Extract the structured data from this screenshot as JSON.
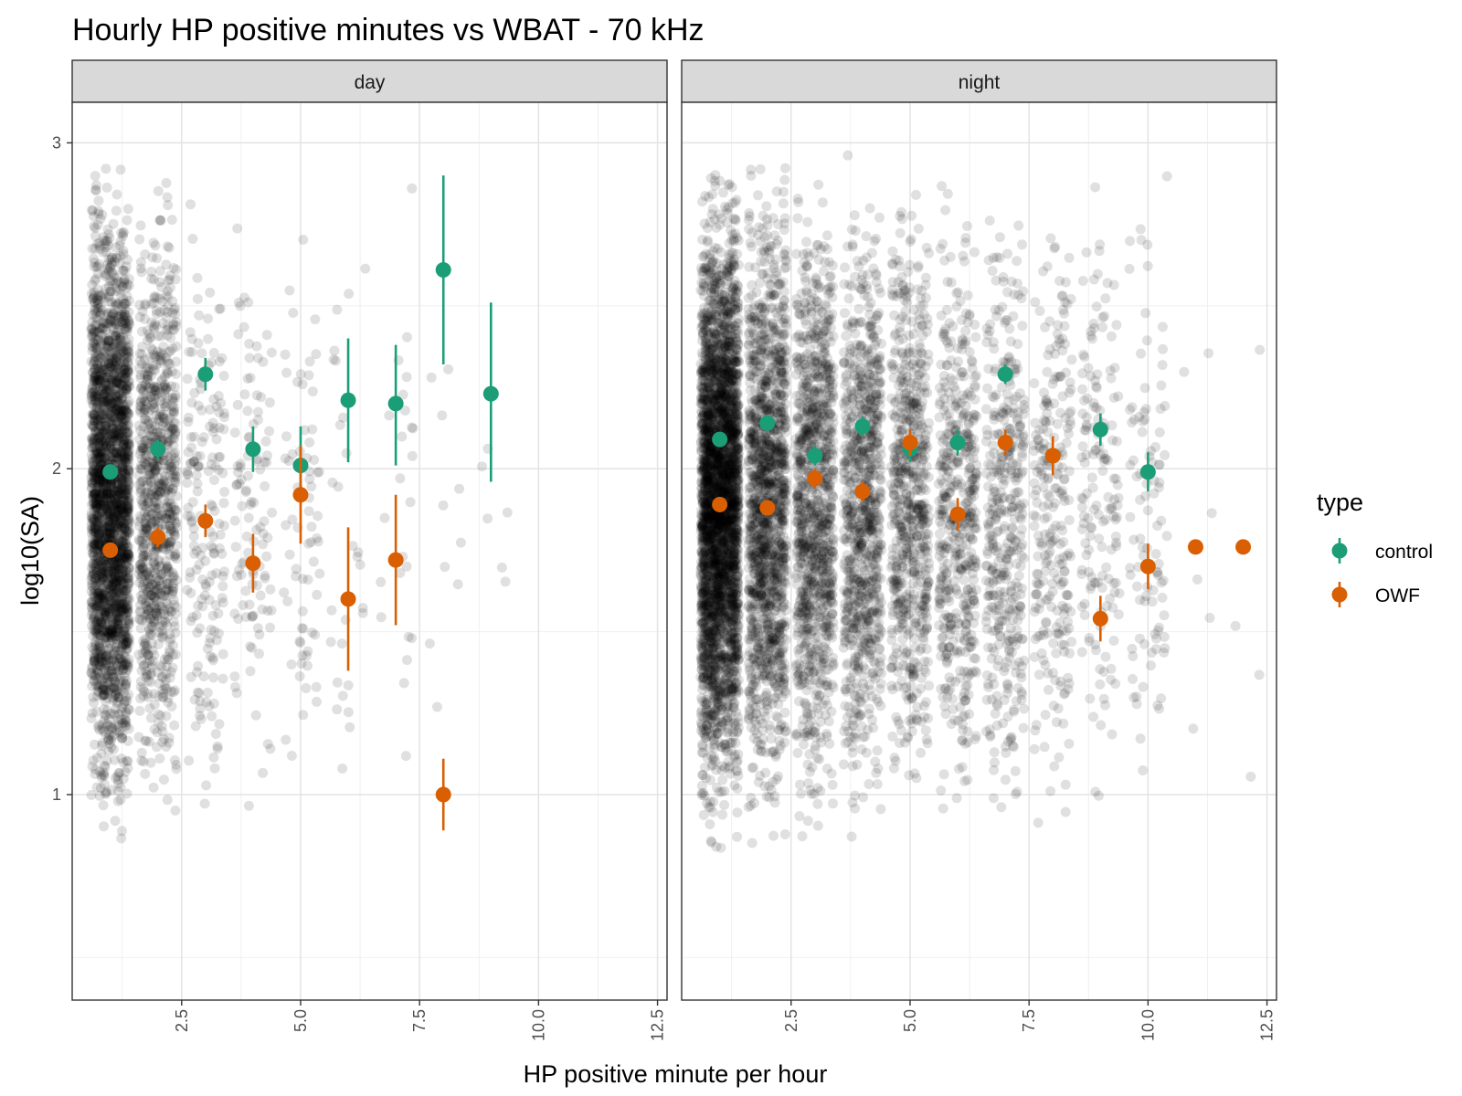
{
  "chart_data": {
    "type": "scatter",
    "title": "Hourly HP positive minutes vs WBAT - 70 kHz",
    "xlabel": "HP positive minute per hour",
    "ylabel": "log10(SA)",
    "xlim": [
      0.2,
      12.7
    ],
    "ylim": [
      0.35,
      3.0
    ],
    "x_ticks": [
      2.5,
      5.0,
      7.5,
      10.0,
      12.5
    ],
    "x_tick_labels": [
      "2.5",
      "5.0",
      "7.5",
      "10.0",
      "12.5"
    ],
    "y_ticks": [
      1,
      2,
      3
    ],
    "y_tick_labels": [
      "1",
      "2",
      "3"
    ],
    "grid": true,
    "legend": {
      "title": "type",
      "position": "right",
      "entries": [
        {
          "label": "control",
          "color": "#1b9e77"
        },
        {
          "label": "OWF",
          "color": "#d95f02"
        }
      ]
    },
    "raw_points_color": "#000000",
    "panels": [
      {
        "strip": "day",
        "raw_point_counts": {
          "1": 2600,
          "2": 900,
          "3": 180,
          "4": 110,
          "5": 70,
          "6": 28,
          "7": 24,
          "8": 10,
          "9": 6
        },
        "series": [
          {
            "name": "control",
            "points": [
              {
                "x": 1,
                "y": 1.99,
                "ymin": 1.98,
                "ymax": 2.0
              },
              {
                "x": 2,
                "y": 2.06,
                "ymin": 2.03,
                "ymax": 2.09
              },
              {
                "x": 3,
                "y": 2.29,
                "ymin": 2.24,
                "ymax": 2.34
              },
              {
                "x": 4,
                "y": 2.06,
                "ymin": 1.99,
                "ymax": 2.13
              },
              {
                "x": 5,
                "y": 2.01,
                "ymin": 1.89,
                "ymax": 2.13
              },
              {
                "x": 6,
                "y": 2.21,
                "ymin": 2.02,
                "ymax": 2.4
              },
              {
                "x": 7,
                "y": 2.2,
                "ymin": 2.01,
                "ymax": 2.38
              },
              {
                "x": 8,
                "y": 2.61,
                "ymin": 2.32,
                "ymax": 2.9
              },
              {
                "x": 9,
                "y": 2.23,
                "ymin": 1.96,
                "ymax": 2.51
              }
            ]
          },
          {
            "name": "OWF",
            "points": [
              {
                "x": 1,
                "y": 1.75,
                "ymin": 1.73,
                "ymax": 1.77
              },
              {
                "x": 2,
                "y": 1.79,
                "ymin": 1.76,
                "ymax": 1.82
              },
              {
                "x": 3,
                "y": 1.84,
                "ymin": 1.79,
                "ymax": 1.89
              },
              {
                "x": 4,
                "y": 1.71,
                "ymin": 1.62,
                "ymax": 1.8
              },
              {
                "x": 5,
                "y": 1.92,
                "ymin": 1.77,
                "ymax": 2.07
              },
              {
                "x": 6,
                "y": 1.6,
                "ymin": 1.38,
                "ymax": 1.82
              },
              {
                "x": 7,
                "y": 1.72,
                "ymin": 1.52,
                "ymax": 1.92
              },
              {
                "x": 8,
                "y": 1.0,
                "ymin": 0.89,
                "ymax": 1.11
              }
            ]
          }
        ]
      },
      {
        "strip": "night",
        "raw_point_counts": {
          "1": 3400,
          "2": 1500,
          "3": 1100,
          "4": 900,
          "5": 700,
          "6": 520,
          "7": 420,
          "8": 260,
          "9": 160,
          "10": 100,
          "11": 6,
          "12": 4
        },
        "series": [
          {
            "name": "control",
            "points": [
              {
                "x": 1,
                "y": 2.09,
                "ymin": 2.08,
                "ymax": 2.1
              },
              {
                "x": 2,
                "y": 2.14,
                "ymin": 2.12,
                "ymax": 2.16
              },
              {
                "x": 3,
                "y": 2.04,
                "ymin": 2.01,
                "ymax": 2.07
              },
              {
                "x": 4,
                "y": 2.13,
                "ymin": 2.1,
                "ymax": 2.16
              },
              {
                "x": 5,
                "y": 2.06,
                "ymin": 2.02,
                "ymax": 2.1
              },
              {
                "x": 6,
                "y": 2.08,
                "ymin": 2.04,
                "ymax": 2.12
              },
              {
                "x": 7,
                "y": 2.29,
                "ymin": 2.26,
                "ymax": 2.32
              },
              {
                "x": 8,
                "y": 2.04,
                "ymin": 1.99,
                "ymax": 2.09
              },
              {
                "x": 9,
                "y": 2.12,
                "ymin": 2.07,
                "ymax": 2.17
              },
              {
                "x": 10,
                "y": 1.99,
                "ymin": 1.93,
                "ymax": 2.05
              }
            ]
          },
          {
            "name": "OWF",
            "points": [
              {
                "x": 1,
                "y": 1.89,
                "ymin": 1.88,
                "ymax": 1.9
              },
              {
                "x": 2,
                "y": 1.88,
                "ymin": 1.86,
                "ymax": 1.9
              },
              {
                "x": 3,
                "y": 1.97,
                "ymin": 1.94,
                "ymax": 2.0
              },
              {
                "x": 4,
                "y": 1.93,
                "ymin": 1.9,
                "ymax": 1.96
              },
              {
                "x": 5,
                "y": 2.08,
                "ymin": 2.04,
                "ymax": 2.12
              },
              {
                "x": 6,
                "y": 1.86,
                "ymin": 1.81,
                "ymax": 1.91
              },
              {
                "x": 7,
                "y": 2.08,
                "ymin": 2.04,
                "ymax": 2.12
              },
              {
                "x": 8,
                "y": 2.04,
                "ymin": 1.98,
                "ymax": 2.1
              },
              {
                "x": 9,
                "y": 1.54,
                "ymin": 1.47,
                "ymax": 1.61
              },
              {
                "x": 10,
                "y": 1.7,
                "ymin": 1.63,
                "ymax": 1.77
              },
              {
                "x": 11,
                "y": 1.76,
                "ymin": 1.74,
                "ymax": 1.78
              },
              {
                "x": 12,
                "y": 1.76,
                "ymin": 1.74,
                "ymax": 1.78
              }
            ]
          }
        ]
      }
    ]
  }
}
